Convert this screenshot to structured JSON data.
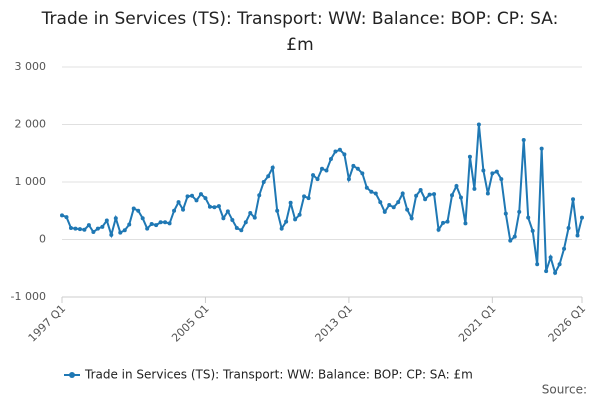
{
  "chart_data": {
    "type": "line",
    "title": "Trade in Services (TS): Transport: WW: Balance: BOP: CP: SA: £m",
    "source_label": "Source:",
    "categories": [
      "1997 Q1",
      null,
      null,
      null,
      null,
      null,
      null,
      null,
      null,
      null,
      null,
      null,
      null,
      null,
      null,
      null,
      null,
      null,
      null,
      null,
      null,
      null,
      null,
      null,
      null,
      null,
      null,
      null,
      null,
      null,
      null,
      null,
      "2005 Q1",
      null,
      null,
      null,
      null,
      null,
      null,
      null,
      null,
      null,
      null,
      null,
      null,
      null,
      null,
      null,
      null,
      null,
      null,
      null,
      null,
      null,
      null,
      null,
      null,
      null,
      null,
      null,
      null,
      null,
      null,
      null,
      "2013 Q1",
      null,
      null,
      null,
      null,
      null,
      null,
      null,
      null,
      null,
      null,
      null,
      null,
      null,
      null,
      null,
      null,
      null,
      null,
      null,
      null,
      null,
      null,
      null,
      null,
      null,
      null,
      null,
      null,
      null,
      null,
      null,
      "2021 Q1",
      null,
      null,
      null,
      null,
      null,
      null,
      null,
      null,
      null,
      null,
      null,
      null,
      null,
      null,
      null,
      null,
      null,
      null,
      null,
      "2026 Q1"
    ],
    "series": [
      {
        "name": "Trade in Services (TS): Transport: WW: Balance: BOP: CP: SA: £m",
        "color": "#1f78b4",
        "values": [
          420,
          390,
          200,
          190,
          180,
          170,
          250,
          130,
          190,
          220,
          330,
          80,
          370,
          120,
          160,
          260,
          540,
          500,
          370,
          190,
          270,
          250,
          300,
          300,
          280,
          500,
          650,
          520,
          750,
          760,
          680,
          790,
          720,
          570,
          560,
          580,
          370,
          490,
          340,
          200,
          160,
          300,
          460,
          380,
          770,
          1000,
          1100,
          1250,
          500,
          190,
          310,
          640,
          350,
          430,
          750,
          720,
          1120,
          1050,
          1230,
          1200,
          1400,
          1530,
          1560,
          1480,
          1050,
          1280,
          1230,
          1150,
          900,
          830,
          800,
          650,
          480,
          600,
          560,
          650,
          800,
          520,
          370,
          760,
          860,
          700,
          780,
          790,
          170,
          290,
          310,
          770,
          930,
          730,
          280,
          1440,
          880,
          2000,
          1200,
          800,
          1150,
          1180,
          1050,
          450,
          -20,
          50,
          480,
          1730,
          380,
          150,
          -430,
          1580,
          -550,
          -310,
          -580,
          -430,
          -160,
          200,
          700,
          70,
          380
        ]
      }
    ],
    "ylim": [
      -1000,
      3000
    ],
    "yticks": [
      {
        "value": -1000,
        "label": "-1 000"
      },
      0,
      {
        "value": 1000,
        "label": "1 000"
      },
      {
        "value": 2000,
        "label": "2 000"
      },
      {
        "value": 3000,
        "label": "3 000"
      }
    ],
    "grid": true
  }
}
